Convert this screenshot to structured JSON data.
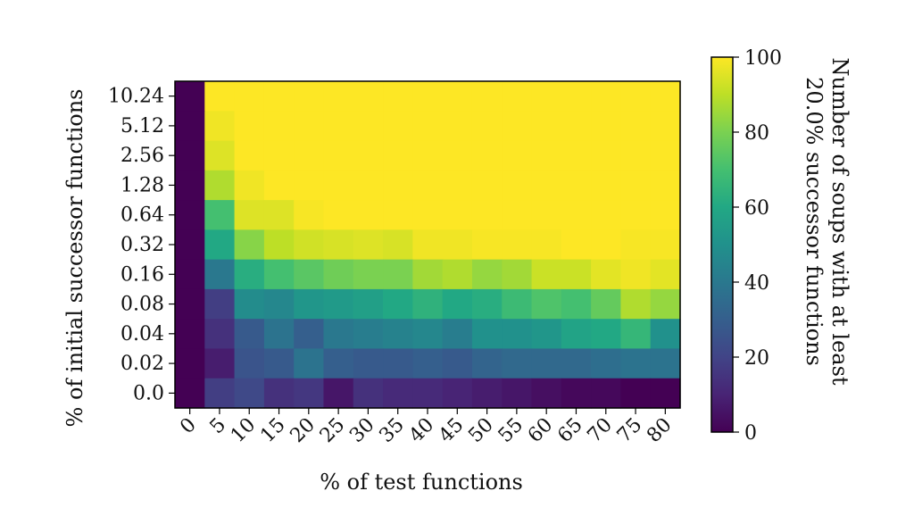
{
  "chart_data": {
    "type": "heatmap",
    "title": "",
    "xlabel": "% of test functions",
    "ylabel": "% of initial successor functions",
    "x_categories": [
      "0",
      "5",
      "10",
      "15",
      "20",
      "25",
      "30",
      "35",
      "40",
      "45",
      "50",
      "55",
      "60",
      "65",
      "70",
      "75",
      "80"
    ],
    "y_categories_top_to_bottom": [
      "10.24",
      "5.12",
      "2.56",
      "1.28",
      "0.64",
      "0.32",
      "0.16",
      "0.08",
      "0.04",
      "0.02",
      "0.0"
    ],
    "values_top_to_bottom": [
      [
        0,
        100,
        100,
        100,
        100,
        100,
        100,
        100,
        100,
        100,
        100,
        100,
        100,
        100,
        100,
        100,
        100
      ],
      [
        0,
        98,
        100,
        100,
        100,
        100,
        100,
        100,
        100,
        100,
        100,
        100,
        100,
        100,
        100,
        100,
        100
      ],
      [
        0,
        95,
        100,
        100,
        100,
        100,
        100,
        100,
        100,
        100,
        100,
        100,
        100,
        100,
        100,
        100,
        100
      ],
      [
        0,
        88,
        98,
        100,
        100,
        100,
        100,
        100,
        100,
        100,
        100,
        100,
        100,
        100,
        100,
        100,
        100
      ],
      [
        0,
        70,
        95,
        95,
        99,
        100,
        100,
        100,
        100,
        100,
        100,
        100,
        100,
        100,
        100,
        100,
        100
      ],
      [
        0,
        60,
        82,
        90,
        93,
        94,
        95,
        94,
        98,
        98,
        99,
        99,
        99,
        100,
        100,
        99,
        99
      ],
      [
        0,
        40,
        62,
        70,
        74,
        78,
        80,
        80,
        86,
        88,
        84,
        86,
        92,
        92,
        96,
        98,
        96
      ],
      [
        0,
        18,
        48,
        46,
        52,
        54,
        56,
        60,
        64,
        60,
        62,
        68,
        72,
        70,
        76,
        88,
        84
      ],
      [
        0,
        14,
        28,
        38,
        30,
        40,
        42,
        44,
        46,
        42,
        50,
        50,
        52,
        58,
        60,
        66,
        50
      ],
      [
        0,
        8,
        26,
        28,
        38,
        30,
        28,
        28,
        30,
        28,
        32,
        34,
        34,
        34,
        36,
        38,
        38
      ],
      [
        0,
        18,
        22,
        14,
        16,
        6,
        14,
        12,
        12,
        10,
        8,
        6,
        4,
        2,
        2,
        0,
        0
      ]
    ],
    "colorbar": {
      "label_line1": "Number of soups with at least",
      "label_line2": "20.0% successor functions",
      "ticks": [
        "0",
        "20",
        "40",
        "60",
        "80",
        "100"
      ],
      "range": [
        0,
        100
      ]
    },
    "colormap": "viridis"
  }
}
